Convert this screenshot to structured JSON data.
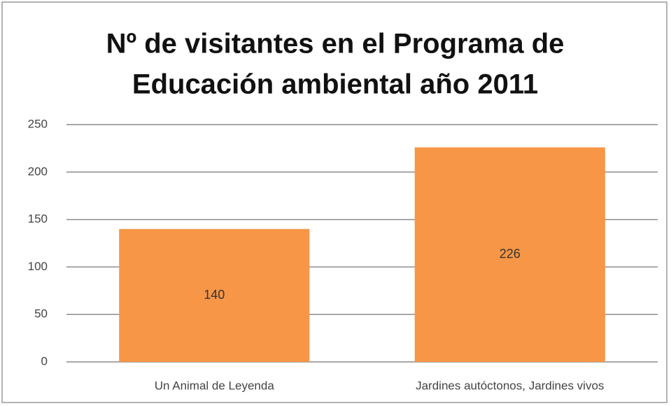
{
  "chart_data": {
    "type": "bar",
    "title": [
      "Nº de visitantes en el Programa de",
      "Educación ambiental año 2011"
    ],
    "categories": [
      "Un Animal de Leyenda",
      "Jardines autóctonos, Jardines vivos"
    ],
    "values": [
      140,
      226
    ],
    "color": "#f79646",
    "ylim": [
      0,
      250
    ],
    "yticks": [
      0,
      50,
      100,
      150,
      200,
      250
    ],
    "grid": true
  }
}
